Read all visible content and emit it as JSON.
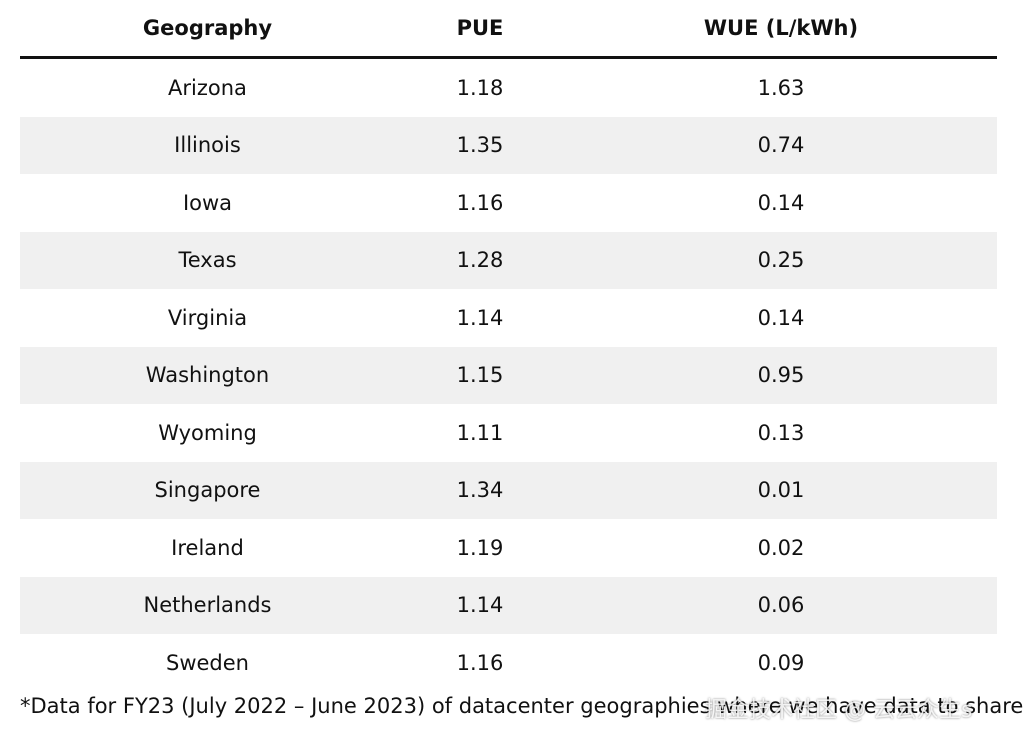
{
  "table": {
    "header": [
      "Geography",
      "PUE",
      "WUE (L/kWh)"
    ],
    "rows": [
      [
        "Arizona",
        "1.18",
        "1.63"
      ],
      [
        "Illinois",
        "1.35",
        "0.74"
      ],
      [
        "Iowa",
        "1.16",
        "0.14"
      ],
      [
        "Texas",
        "1.28",
        "0.25"
      ],
      [
        "Virginia",
        "1.14",
        "0.14"
      ],
      [
        "Washington",
        "1.15",
        "0.95"
      ],
      [
        "Wyoming",
        "1.11",
        "0.13"
      ],
      [
        "Singapore",
        "1.34",
        "0.01"
      ],
      [
        "Ireland",
        "1.19",
        "0.02"
      ],
      [
        "Netherlands",
        "1.14",
        "0.06"
      ],
      [
        "Sweden",
        "1.16",
        "0.09"
      ]
    ]
  },
  "footnote": "*Data for FY23 (July 2022 – June 2023) of datacenter geographies where we have data to share",
  "watermark": "掘金技术社区 @ 云云众生s"
}
